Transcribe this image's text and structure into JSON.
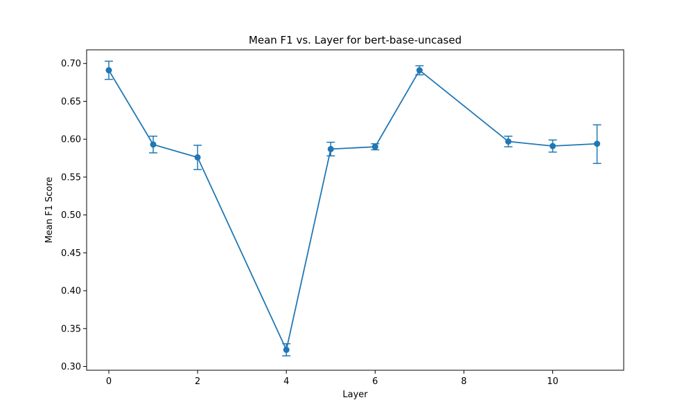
{
  "chart_data": {
    "type": "line",
    "title": "Mean F1 vs. Layer for bert-base-uncased",
    "xlabel": "Layer",
    "ylabel": "Mean F1 Score",
    "xlim": [
      -0.5,
      11.6
    ],
    "ylim": [
      0.295,
      0.718
    ],
    "x_ticks": [
      0,
      2,
      4,
      6,
      8,
      10
    ],
    "y_ticks": [
      0.3,
      0.35,
      0.4,
      0.45,
      0.5,
      0.55,
      0.6,
      0.65,
      0.7
    ],
    "grid": false,
    "legend": "none",
    "series": [
      {
        "color": "#1f77b4",
        "x": [
          0,
          1,
          2,
          4,
          5,
          6,
          7,
          9,
          10,
          11
        ],
        "y": [
          0.691,
          0.593,
          0.576,
          0.322,
          0.587,
          0.59,
          0.691,
          0.597,
          0.591,
          0.594
        ],
        "err_low": [
          0.679,
          0.582,
          0.56,
          0.314,
          0.578,
          0.586,
          0.685,
          0.59,
          0.583,
          0.568
        ],
        "err_high": [
          0.703,
          0.604,
          0.592,
          0.33,
          0.596,
          0.594,
          0.697,
          0.604,
          0.599,
          0.619
        ]
      }
    ]
  }
}
